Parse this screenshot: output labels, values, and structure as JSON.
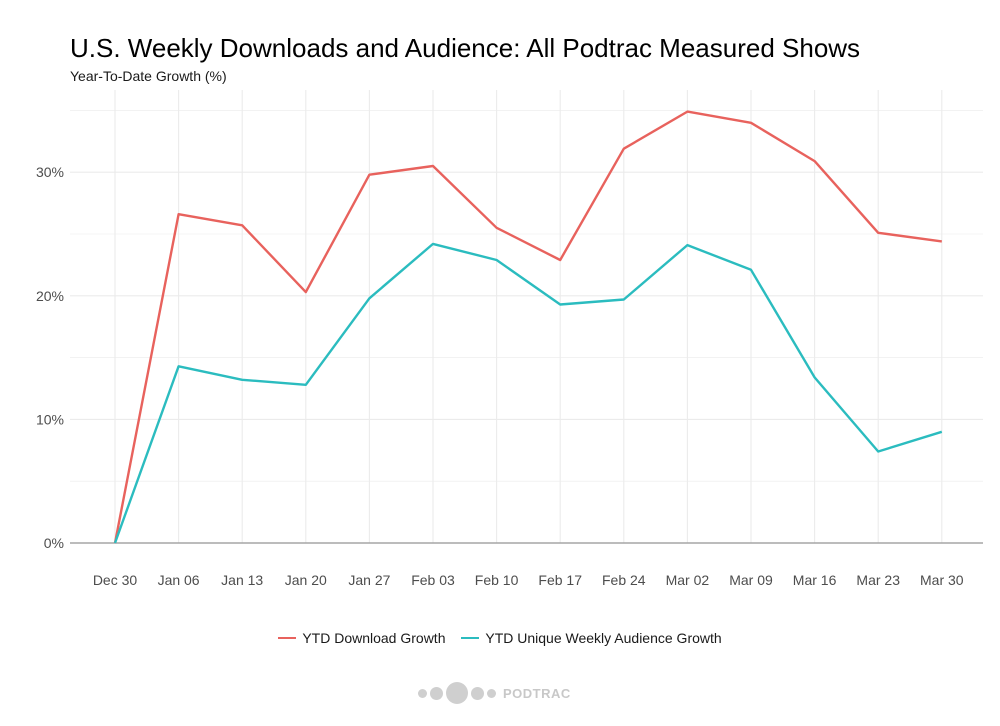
{
  "title": "U.S. Weekly Downloads and Audience: All Podtrac Measured Shows",
  "subtitle": "Year-To-Date Growth (%)",
  "footer": {
    "logo_text": "PODTRAC"
  },
  "colors": {
    "download": "#e8625d",
    "audience": "#2bbcbf",
    "grid": "#ebebeb",
    "axis": "#a6a6a6"
  },
  "chart_data": {
    "type": "line",
    "title": "U.S. Weekly Downloads and Audience: All Podtrac Measured Shows",
    "subtitle": "Year-To-Date Growth (%)",
    "xlabel": "",
    "ylabel": "",
    "categories": [
      "Dec 30",
      "Jan 06",
      "Jan 13",
      "Jan 20",
      "Jan 27",
      "Feb 03",
      "Feb 10",
      "Feb 17",
      "Feb 24",
      "Mar 02",
      "Mar 09",
      "Mar 16",
      "Mar 23",
      "Mar 30"
    ],
    "ylim": [
      0,
      36
    ],
    "yticks": [
      0,
      10,
      20,
      30
    ],
    "ytick_labels": [
      "0%",
      "10%",
      "20%",
      "30%"
    ],
    "grid": true,
    "legend_position": "bottom",
    "series": [
      {
        "name": "YTD Download Growth",
        "color": "#e8625d",
        "values": [
          0,
          26.6,
          25.7,
          20.3,
          29.8,
          30.5,
          25.5,
          22.9,
          31.9,
          34.9,
          34.0,
          30.9,
          25.1,
          24.4
        ]
      },
      {
        "name": "YTD Unique Weekly Audience Growth",
        "color": "#2bbcbf",
        "values": [
          0,
          14.3,
          13.2,
          12.8,
          19.8,
          24.2,
          22.9,
          19.3,
          19.7,
          24.1,
          22.1,
          13.4,
          7.4,
          9.0
        ]
      }
    ]
  }
}
